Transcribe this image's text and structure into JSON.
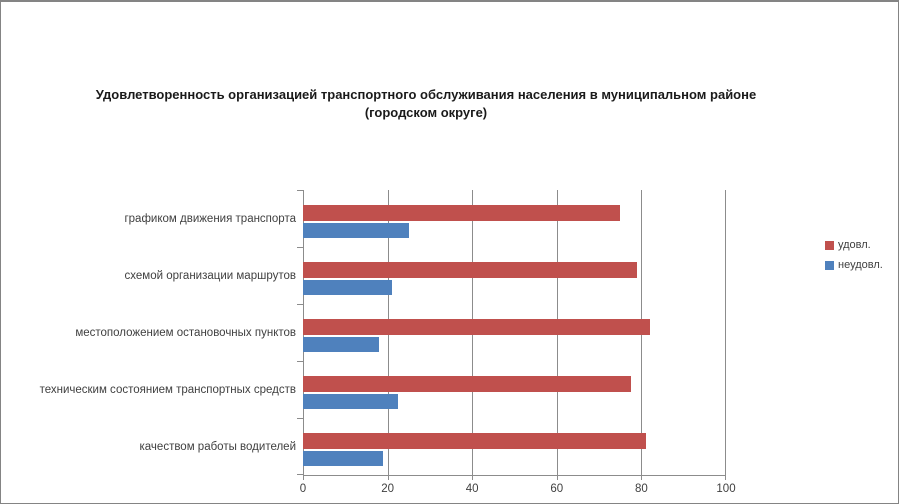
{
  "chart_data": {
    "type": "bar",
    "orientation": "horizontal",
    "title": "Удовлетворенность организацией транспортного обслуживания населения в муниципальном районе",
    "title_line2": "(городском округе)",
    "categories": [
      "графиком движения транспорта",
      "схемой организации маршрутов",
      "местоположением остановочных пунктов",
      "техническим состоянием транспортных средств",
      "качеством работы водителей"
    ],
    "series": [
      {
        "name": "удовл.",
        "color": "#C0504D",
        "values": [
          75,
          79,
          82,
          77.5,
          81
        ]
      },
      {
        "name": "неудовл.",
        "color": "#4F81BD",
        "values": [
          25,
          21,
          18,
          22.5,
          19
        ]
      }
    ],
    "x_ticks": [
      0,
      20,
      40,
      60,
      80,
      100
    ],
    "xlim": [
      0,
      100
    ],
    "grid": true,
    "legend_position": "right",
    "gridline_color": "#8c8c8c",
    "text_color": "#404040"
  }
}
